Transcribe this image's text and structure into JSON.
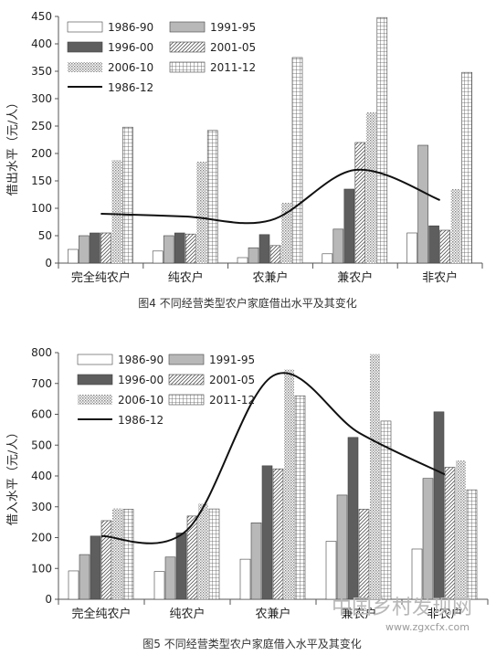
{
  "chart_data": [
    {
      "type": "bar",
      "ylabel": "借出水平（元/人）",
      "ylim": [
        0,
        450
      ],
      "yticks": [
        0,
        50,
        100,
        150,
        200,
        250,
        300,
        350,
        400,
        450
      ],
      "categories": [
        "完全纯农户",
        "纯农户",
        "农兼户",
        "兼农户",
        "非农户"
      ],
      "series": [
        {
          "name": "1986-90",
          "values": [
            25,
            22,
            10,
            17,
            55
          ],
          "pattern": "white"
        },
        {
          "name": "1991-95",
          "values": [
            50,
            50,
            28,
            62,
            215
          ],
          "pattern": "lightgray"
        },
        {
          "name": "1996-00",
          "values": [
            55,
            55,
            52,
            135,
            68
          ],
          "pattern": "darkgray"
        },
        {
          "name": "2001-05",
          "values": [
            55,
            53,
            32,
            220,
            60
          ],
          "pattern": "diag"
        },
        {
          "name": "2006-10",
          "values": [
            188,
            185,
            110,
            275,
            135
          ],
          "pattern": "dots"
        },
        {
          "name": "2011-12",
          "values": [
            248,
            242,
            375,
            448,
            348
          ],
          "pattern": "grid"
        }
      ],
      "trend": {
        "name": "1986-12",
        "values": [
          90,
          85,
          78,
          170,
          115
        ]
      },
      "caption": "图4  不同经营类型农户家庭借出水平及其变化"
    },
    {
      "type": "bar",
      "ylabel": "借入水平（元/人）",
      "ylim": [
        0,
        800
      ],
      "yticks": [
        0,
        100,
        200,
        300,
        400,
        500,
        600,
        700,
        800
      ],
      "categories": [
        "完全纯农户",
        "纯农户",
        "农兼户",
        "兼农户",
        "非农户"
      ],
      "series": [
        {
          "name": "1986-90",
          "values": [
            92,
            90,
            130,
            188,
            163
          ],
          "pattern": "white"
        },
        {
          "name": "1991-95",
          "values": [
            145,
            137,
            248,
            338,
            392
          ],
          "pattern": "lightgray"
        },
        {
          "name": "1996-00",
          "values": [
            205,
            215,
            433,
            525,
            608
          ],
          "pattern": "darkgray"
        },
        {
          "name": "2001-05",
          "values": [
            255,
            270,
            423,
            292,
            428
          ],
          "pattern": "diag"
        },
        {
          "name": "2006-10",
          "values": [
            295,
            310,
            745,
            795,
            450
          ],
          "pattern": "dots"
        },
        {
          "name": "2011-12",
          "values": [
            292,
            293,
            660,
            578,
            355
          ],
          "pattern": "grid"
        }
      ],
      "trend": {
        "name": "1986-12",
        "values": [
          205,
          225,
          725,
          540,
          405
        ]
      },
      "caption": "图5  不同经营类型农户家庭借入水平及其变化"
    }
  ],
  "watermark": "中国乡村发现网",
  "watermark_url": "www.zgxcfx.com"
}
